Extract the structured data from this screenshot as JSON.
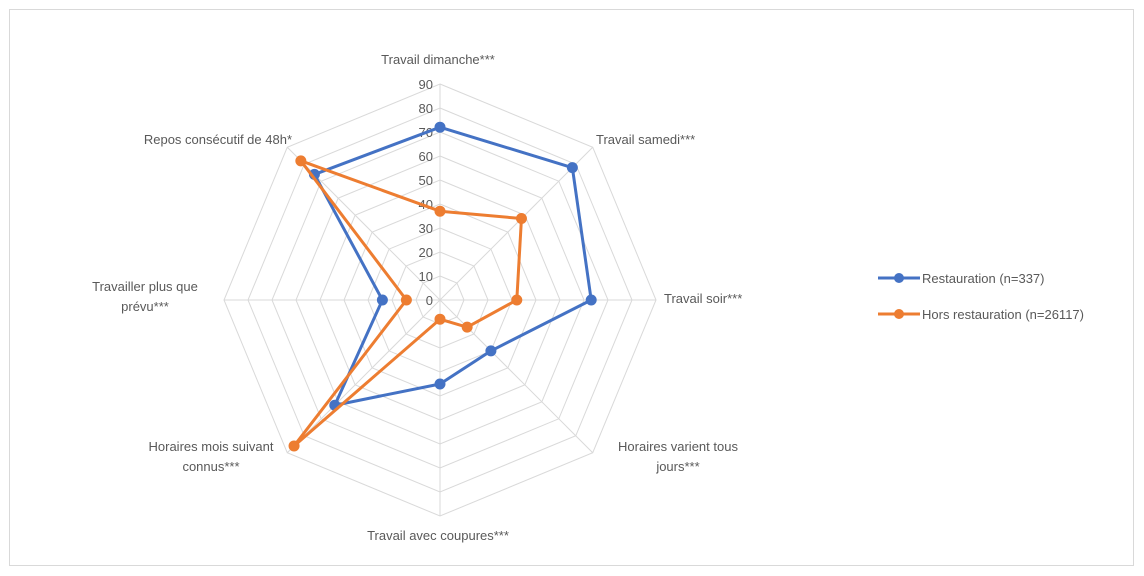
{
  "chart_data": {
    "type": "radar",
    "title": "",
    "categories": [
      "Travail dimanche***",
      "Travail samedi***",
      "Travail soir***",
      "Horaires varient tous jours***",
      "Travail avec coupures***",
      "Horaires mois suivant connus***",
      "Travailler plus que prévu***",
      "Repos consécutif de 48h*"
    ],
    "category_lines": [
      [
        "Travail dimanche***"
      ],
      [
        "Travail samedi***"
      ],
      [
        "Travail soir***"
      ],
      [
        "Horaires varient tous",
        "jours***"
      ],
      [
        "Travail avec coupures***"
      ],
      [
        "Horaires mois suivant",
        "connus***"
      ],
      [
        "Travailler plus que",
        "prévu***"
      ],
      [
        "Repos consécutif de 48h*"
      ]
    ],
    "rlim": [
      0,
      90
    ],
    "ticks": [
      0,
      10,
      20,
      30,
      40,
      50,
      60,
      70,
      80,
      90
    ],
    "grid": true,
    "legend_position": "right",
    "series": [
      {
        "name": "Restauration (n=337)",
        "color": "#4472c4",
        "values": [
          72,
          78,
          63,
          30,
          35,
          62,
          24,
          74
        ]
      },
      {
        "name": "Hors restauration (n=26117)",
        "color": "#ed7d31",
        "values": [
          37,
          48,
          32,
          16,
          8,
          86,
          14,
          82
        ]
      }
    ]
  }
}
